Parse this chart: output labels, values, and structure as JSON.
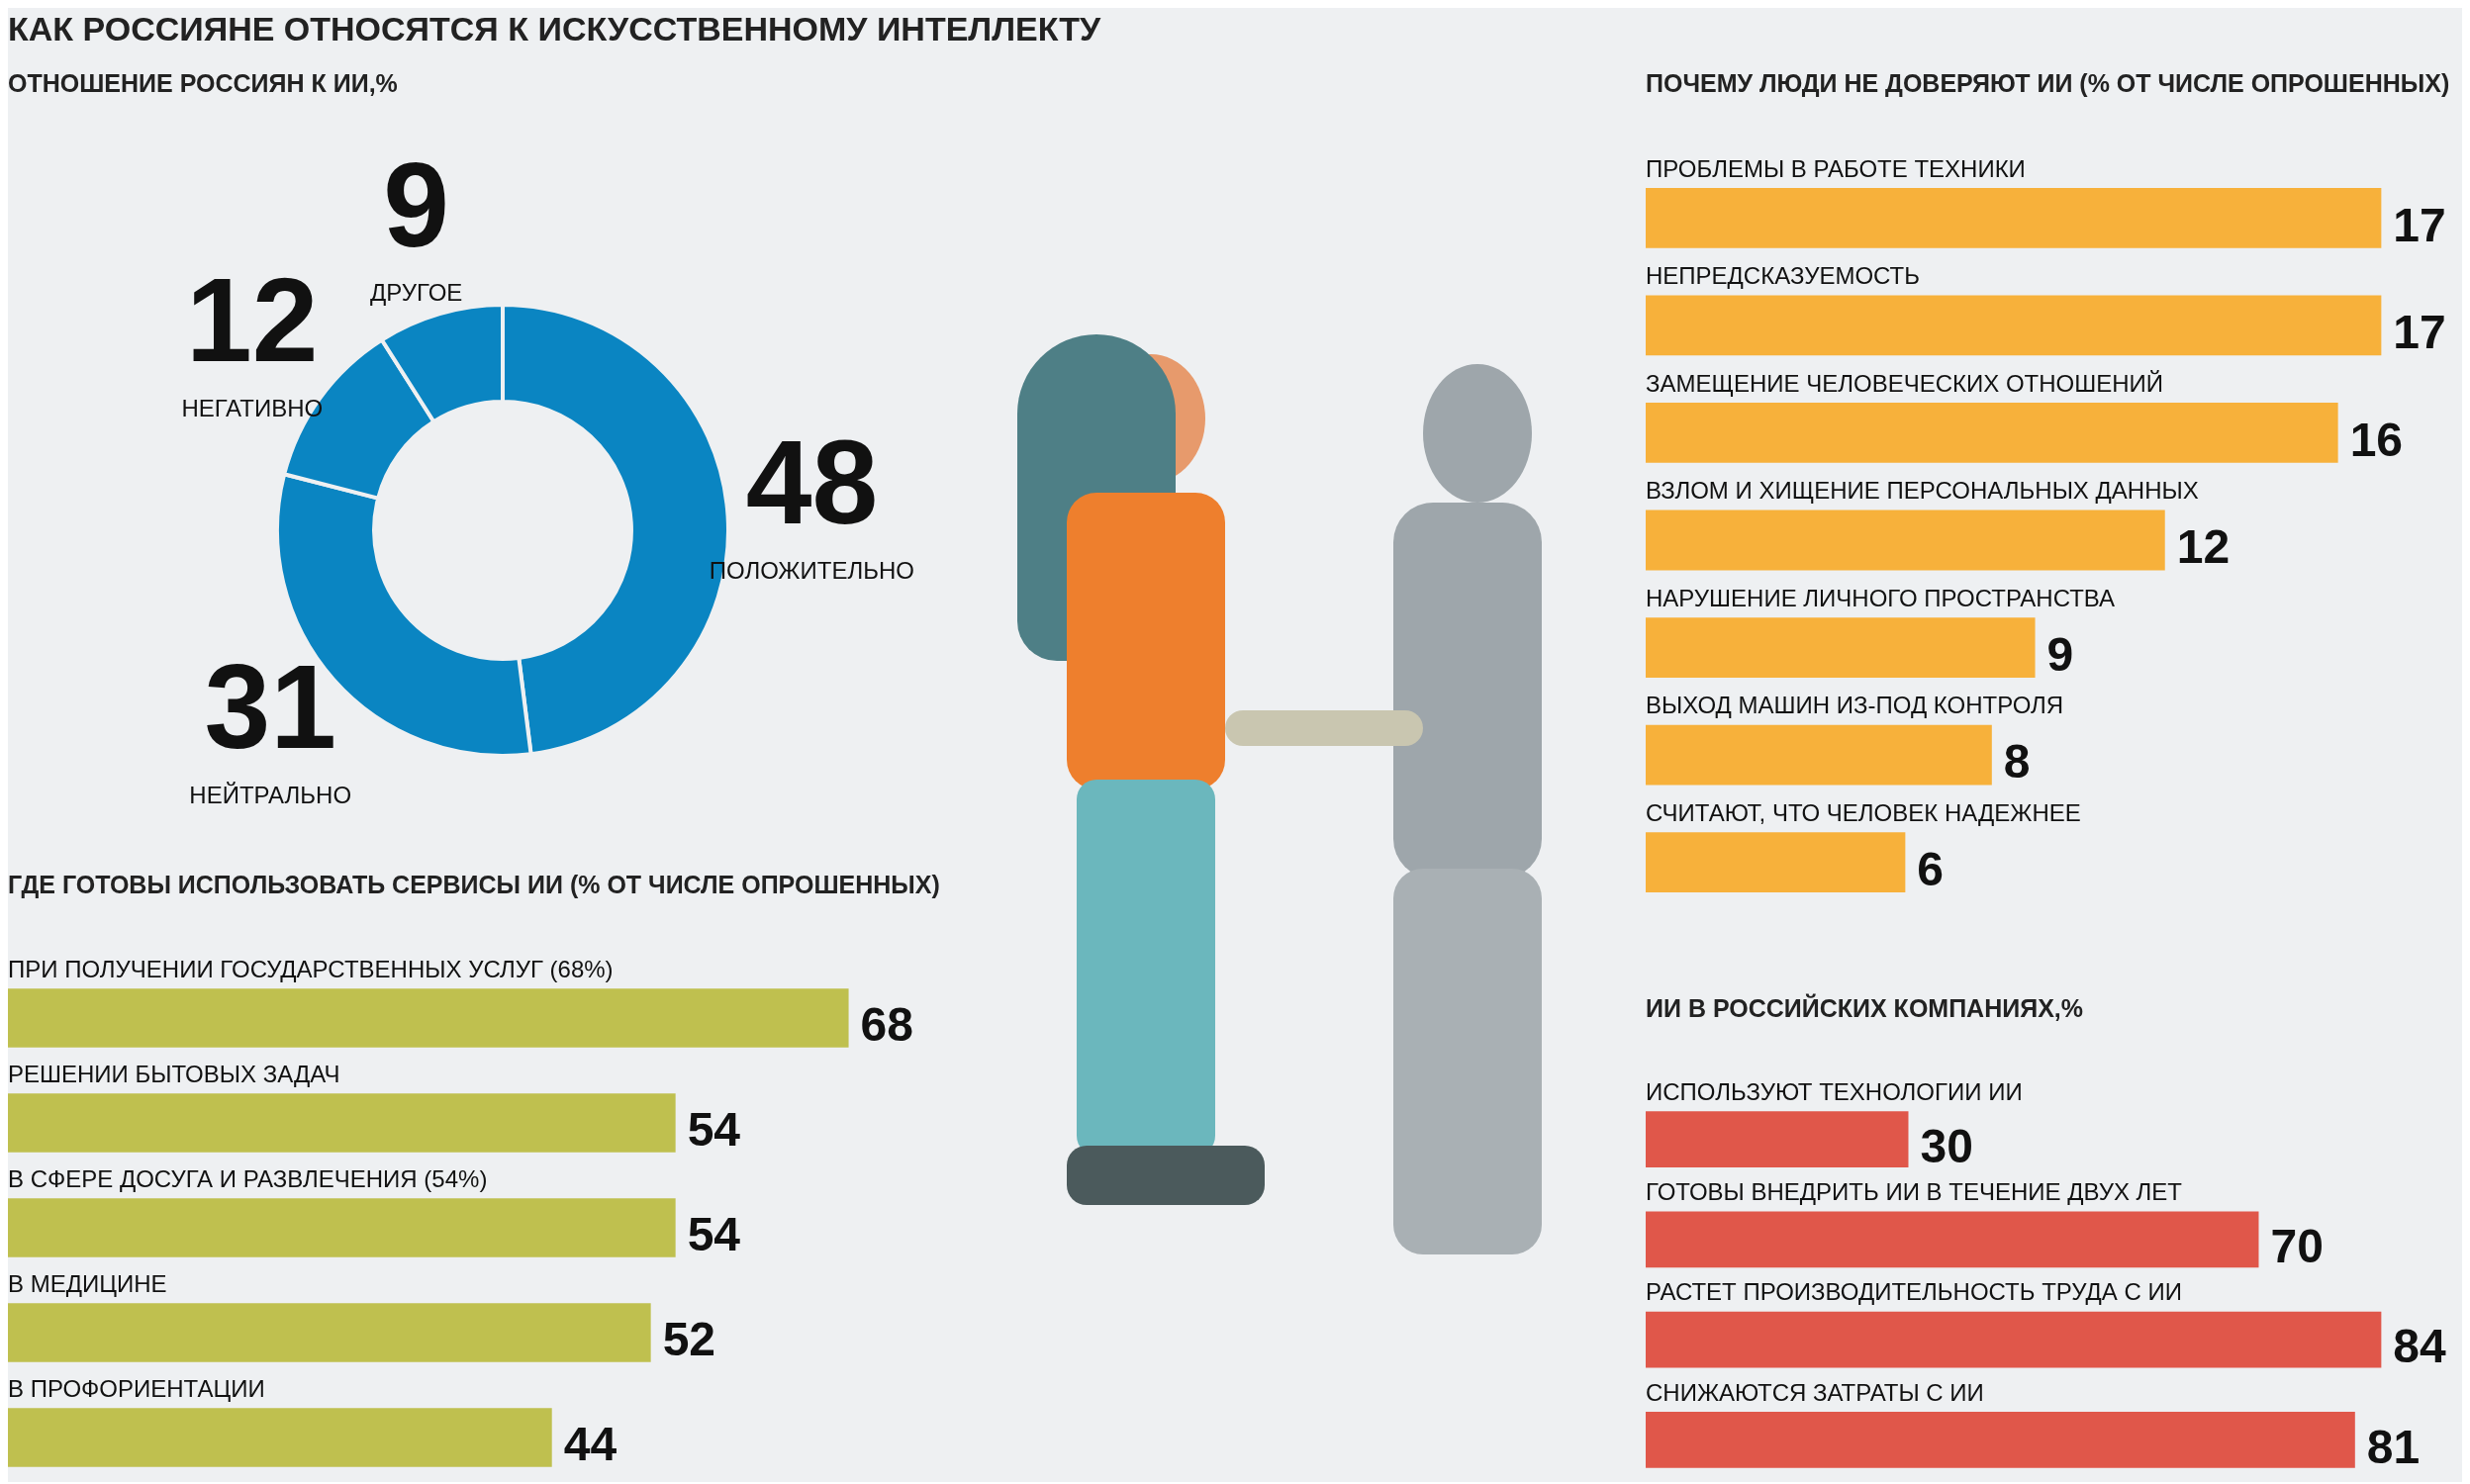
{
  "chart_data": [
    {
      "type": "other",
      "title": "КАК РОССИЯНЕ ОТНОСЯТСЯ К ИСКУССТВЕННОМУ ИНТЕЛЛЕКТУ"
    },
    {
      "type": "donut",
      "title": "ОТНОШЕНИЕ РОССИЯН К ИИ,%",
      "categories": [
        "ПОЛОЖИТЕЛЬНО",
        "НЕЙТРАЛЬНО",
        "НЕГАТИВНО",
        "ДРУГОЕ"
      ],
      "values": [
        48,
        31,
        12,
        9
      ],
      "colors": [
        "#0a85c2",
        "#0a85c2",
        "#0a85c2",
        "#0a85c2"
      ],
      "data_labels": true
    },
    {
      "type": "bar",
      "orientation": "horizontal",
      "title": "ПОЧЕМУ ЛЮДИ НЕ ДОВЕРЯЮТ ИИ (% ОТ ЧИСЛЕ ОПРОШЕННЫХ)",
      "categories": [
        "ПРОБЛЕМЫ В РАБОТЕ ТЕХНИКИ",
        "НЕПРЕДСКАЗУЕМОСТЬ",
        "ЗАМЕЩЕНИЕ ЧЕЛОВЕЧЕСКИХ ОТНОШЕНИЙ",
        "ВЗЛОМ И ХИЩЕНИЕ ПЕРСОНАЛЬНЫХ ДАННЫХ",
        "НАРУШЕНИЕ ЛИЧНОГО ПРОСТРАНСТВА",
        "ВЫХОД МАШИН ИЗ-ПОД КОНТРОЛЯ",
        "СЧИТАЮТ, ЧТО ЧЕЛОВЕК НАДЕЖНЕЕ"
      ],
      "values": [
        17,
        17,
        16,
        12,
        9,
        8,
        6
      ],
      "color": "#f7b13b",
      "data_labels": true
    },
    {
      "type": "bar",
      "orientation": "horizontal",
      "title": "ГДЕ ГОТОВЫ ИСПОЛЬЗОВАТЬ СЕРВИСЫ ИИ (% ОТ ЧИСЛЕ ОПРОШЕННЫХ)",
      "categories": [
        "ПРИ ПОЛУЧЕНИИ ГОСУДАРСТВЕННЫХ УСЛУГ (68%)",
        "РЕШЕНИИ БЫТОВЫХ ЗАДАЧ",
        "В СФЕРЕ ДОСУГА И РАЗВЛЕЧЕНИЯ (54%)",
        "В МЕДИЦИНЕ",
        "В ПРОФОРИЕНТАЦИИ"
      ],
      "values": [
        68,
        54,
        54,
        52,
        44
      ],
      "color": "#bfc04f",
      "data_labels": true
    },
    {
      "type": "bar",
      "orientation": "horizontal",
      "title": "ИИ В РОССИЙСКИХ КОМПАНИЯХ,%",
      "categories": [
        "ИСПОЛЬЗУЮТ ТЕХНОЛОГИИ ИИ",
        "ГОТОВЫ ВНЕДРИТЬ ИИ В ТЕЧЕНИЕ ДВУХ ЛЕТ",
        "РАСТЕТ ПРОИЗВОДИТЕЛЬНОСТЬ ТРУДА С ИИ",
        "СНИЖАЮТСЯ ЗАТРАТЫ С ИИ"
      ],
      "values": [
        30,
        70,
        84,
        81
      ],
      "color": "#e0574a",
      "data_labels": true
    }
  ]
}
